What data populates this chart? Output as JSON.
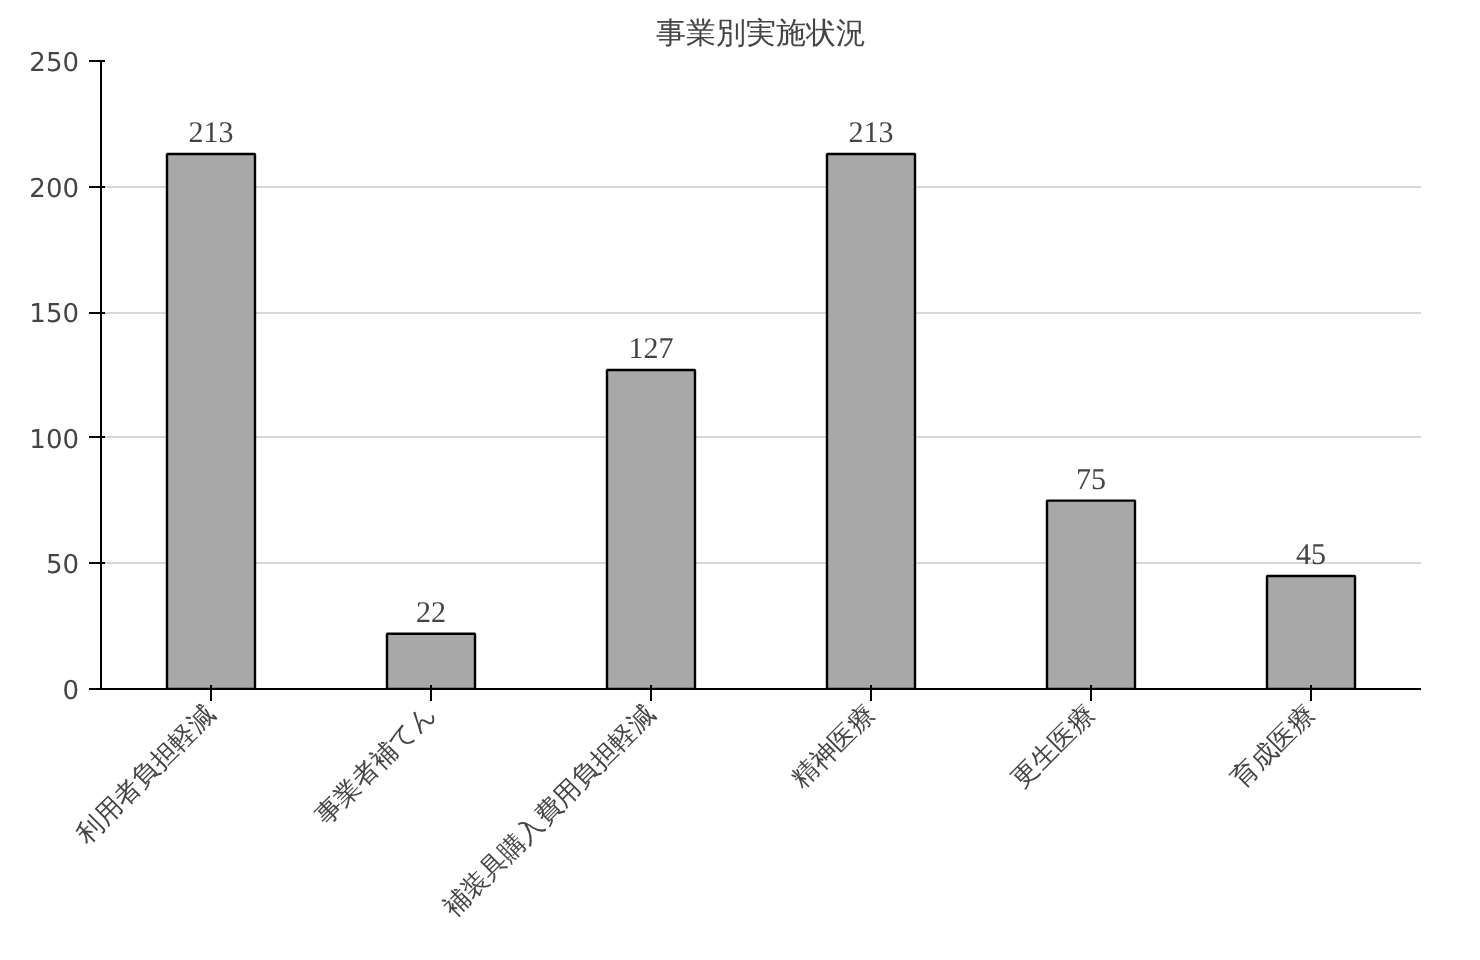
{
  "chart_data": {
    "type": "bar",
    "title": "事業別実施状況",
    "categories": [
      "利用者負担軽減",
      "事業者補てん",
      "補装具購入費用負担軽減",
      "精神医療",
      "更生医療",
      "育成医療"
    ],
    "values": [
      213,
      22,
      127,
      213,
      75,
      45
    ],
    "color": "#a8a8a8",
    "ylim": [
      0,
      250
    ],
    "yticks": [
      0,
      50,
      100,
      150,
      200,
      250
    ],
    "grid": "y",
    "data_labels": true
  }
}
